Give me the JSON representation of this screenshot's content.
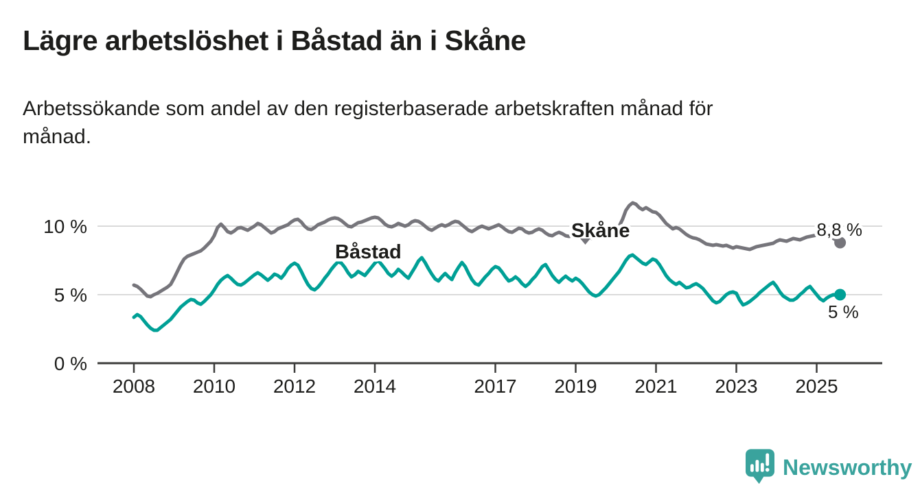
{
  "title": "Lägre arbetslöshet i Båstad än i Skåne",
  "subtitle_lines": [
    "Arbetssökande som andel av den registerbaserade arbetskraften månad för",
    "månad."
  ],
  "branding": {
    "name": "Newsworthy"
  },
  "colors": {
    "text": "#1d1d1b",
    "axis": "#3c3c3b",
    "grid": "#dadada",
    "skane": "#76757b",
    "bastad": "#00a096",
    "brand": "#3aa39d"
  },
  "chart_data": {
    "type": "line",
    "title": "Lägre arbetslöshet i Båstad än i Skåne",
    "xlabel": "",
    "ylabel": "Arbetssökande som andel av den registerbaserade arbetskraften",
    "x_unit": "month",
    "x_range": {
      "start": "2008-01",
      "end": "2025-08"
    },
    "ylim": [
      0,
      12.3
    ],
    "grid": "horizontal",
    "legend": "inline-labels",
    "x_ticks": [
      2008,
      2010,
      2012,
      2014,
      2017,
      2019,
      2021,
      2023,
      2025
    ],
    "y_ticks": [
      {
        "value": 0,
        "label": "0 %"
      },
      {
        "value": 5,
        "label": "5 %"
      },
      {
        "value": 10,
        "label": "10 %"
      }
    ],
    "series": [
      {
        "id": "skane",
        "name": "Skåne",
        "color": "#76757b",
        "end_label": "8,8 %",
        "values": [
          5.7,
          5.6,
          5.4,
          5.15,
          4.9,
          4.85,
          5.0,
          5.1,
          5.25,
          5.4,
          5.55,
          5.75,
          6.2,
          6.7,
          7.2,
          7.6,
          7.8,
          7.9,
          8.0,
          8.1,
          8.2,
          8.4,
          8.65,
          8.9,
          9.3,
          9.9,
          10.15,
          9.9,
          9.6,
          9.5,
          9.65,
          9.85,
          9.9,
          9.8,
          9.7,
          9.85,
          10.0,
          10.2,
          10.1,
          9.9,
          9.7,
          9.5,
          9.6,
          9.8,
          9.9,
          10.0,
          10.1,
          10.3,
          10.45,
          10.5,
          10.3,
          10.0,
          9.8,
          9.75,
          9.9,
          10.1,
          10.2,
          10.3,
          10.45,
          10.55,
          10.6,
          10.55,
          10.4,
          10.2,
          10.0,
          9.95,
          10.1,
          10.25,
          10.3,
          10.4,
          10.5,
          10.6,
          10.65,
          10.6,
          10.4,
          10.15,
          10.0,
          9.95,
          10.05,
          10.2,
          10.1,
          10.0,
          10.1,
          10.3,
          10.4,
          10.35,
          10.2,
          10.0,
          9.8,
          9.7,
          9.85,
          10.0,
          10.1,
          10.0,
          10.1,
          10.25,
          10.35,
          10.3,
          10.1,
          9.9,
          9.7,
          9.6,
          9.75,
          9.9,
          10.0,
          9.9,
          9.8,
          9.9,
          10.0,
          10.1,
          9.95,
          9.75,
          9.6,
          9.55,
          9.7,
          9.85,
          9.8,
          9.6,
          9.5,
          9.55,
          9.7,
          9.8,
          9.7,
          9.5,
          9.35,
          9.3,
          9.45,
          9.55,
          9.45,
          9.3,
          9.25,
          9.3,
          9.4,
          9.45,
          9.35,
          9.25,
          9.15,
          9.1,
          9.2,
          9.3,
          9.25,
          9.3,
          9.45,
          9.6,
          9.8,
          10.0,
          10.5,
          11.15,
          11.5,
          11.7,
          11.6,
          11.35,
          11.2,
          11.35,
          11.2,
          11.05,
          11.0,
          10.8,
          10.5,
          10.2,
          10.0,
          9.8,
          9.9,
          9.8,
          9.6,
          9.4,
          9.25,
          9.15,
          9.1,
          9.0,
          8.85,
          8.7,
          8.65,
          8.6,
          8.65,
          8.6,
          8.55,
          8.6,
          8.5,
          8.4,
          8.5,
          8.45,
          8.4,
          8.35,
          8.3,
          8.4,
          8.5,
          8.55,
          8.6,
          8.65,
          8.7,
          8.75,
          8.9,
          9.0,
          8.95,
          8.9,
          9.0,
          9.1,
          9.05,
          9.0,
          9.1,
          9.2,
          9.25,
          9.3,
          9.35,
          9.4,
          9.35,
          9.25,
          9.2,
          9.1,
          8.95,
          8.8
        ]
      },
      {
        "id": "bastad",
        "name": "Båstad",
        "color": "#00a096",
        "end_label": "5 %",
        "values": [
          3.35,
          3.55,
          3.4,
          3.1,
          2.8,
          2.55,
          2.4,
          2.4,
          2.6,
          2.8,
          3.0,
          3.2,
          3.5,
          3.8,
          4.1,
          4.3,
          4.5,
          4.65,
          4.6,
          4.4,
          4.3,
          4.5,
          4.75,
          5.0,
          5.35,
          5.75,
          6.05,
          6.25,
          6.4,
          6.2,
          5.95,
          5.75,
          5.7,
          5.85,
          6.05,
          6.25,
          6.45,
          6.6,
          6.45,
          6.25,
          6.05,
          6.25,
          6.5,
          6.4,
          6.2,
          6.5,
          6.9,
          7.15,
          7.3,
          7.15,
          6.7,
          6.2,
          5.75,
          5.45,
          5.35,
          5.55,
          5.85,
          6.2,
          6.5,
          6.85,
          7.15,
          7.4,
          7.3,
          7.0,
          6.6,
          6.3,
          6.45,
          6.7,
          6.55,
          6.4,
          6.7,
          7.0,
          7.3,
          7.5,
          7.2,
          6.9,
          6.55,
          6.35,
          6.55,
          6.85,
          6.65,
          6.4,
          6.2,
          6.6,
          7.0,
          7.45,
          7.7,
          7.35,
          6.9,
          6.5,
          6.15,
          6.0,
          6.3,
          6.55,
          6.3,
          6.1,
          6.6,
          7.0,
          7.35,
          7.05,
          6.55,
          6.1,
          5.8,
          5.7,
          6.0,
          6.3,
          6.55,
          6.85,
          7.05,
          6.95,
          6.65,
          6.3,
          6.0,
          6.1,
          6.3,
          6.1,
          5.8,
          5.6,
          5.8,
          6.1,
          6.35,
          6.7,
          7.05,
          7.2,
          6.8,
          6.4,
          6.1,
          5.9,
          6.15,
          6.35,
          6.15,
          6.0,
          6.2,
          6.05,
          5.8,
          5.5,
          5.2,
          5.0,
          4.9,
          5.0,
          5.25,
          5.5,
          5.8,
          6.1,
          6.4,
          6.7,
          7.1,
          7.5,
          7.8,
          7.9,
          7.7,
          7.5,
          7.3,
          7.2,
          7.4,
          7.6,
          7.5,
          7.2,
          6.8,
          6.4,
          6.1,
          5.9,
          5.75,
          5.9,
          5.7,
          5.5,
          5.55,
          5.7,
          5.8,
          5.65,
          5.45,
          5.15,
          4.85,
          4.55,
          4.4,
          4.5,
          4.75,
          5.0,
          5.15,
          5.2,
          5.1,
          4.6,
          4.25,
          4.35,
          4.5,
          4.7,
          4.9,
          5.15,
          5.35,
          5.55,
          5.75,
          5.9,
          5.6,
          5.2,
          4.9,
          4.75,
          4.6,
          4.6,
          4.75,
          5.0,
          5.2,
          5.45,
          5.6,
          5.3,
          5.0,
          4.7,
          4.55,
          4.75,
          4.9,
          5.0,
          4.95,
          5.0
        ]
      }
    ]
  }
}
